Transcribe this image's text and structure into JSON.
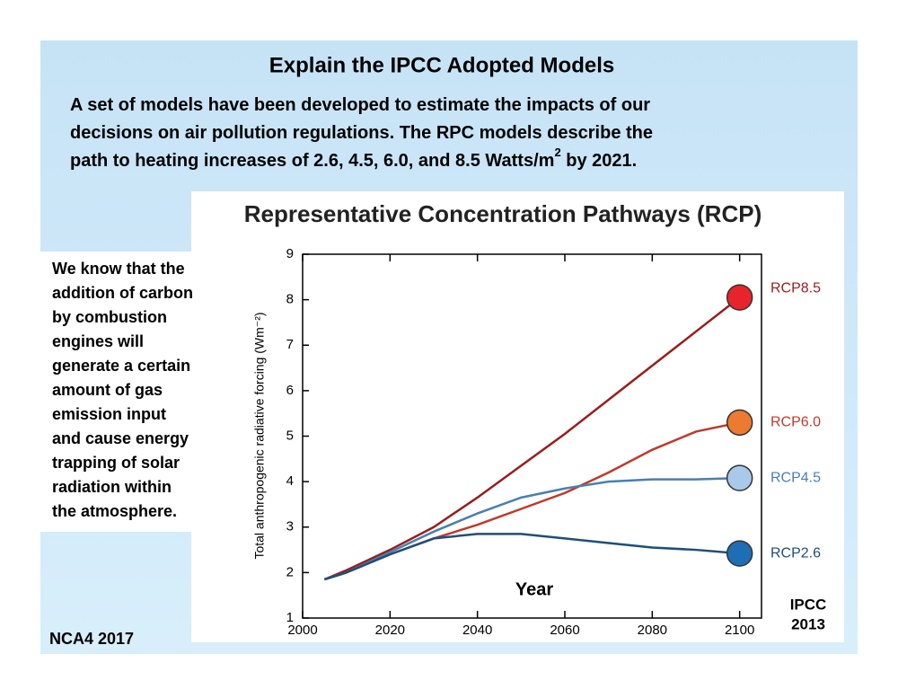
{
  "slide": {
    "title": "Explain the IPCC Adopted Models",
    "body_lines": [
      "A set of models have been developed to estimate the impacts of our",
      "decisions on air pollution regulations.  The RPC models describe the",
      "path to heating increases of 2.6, 4.5, 6.0, and 8.5 Watts/m"
    ],
    "body_superscript": "2",
    "body_tail": " by 2021.",
    "side_lines": [
      "We know that the",
      "addition of carbon",
      "by combustion",
      "engines will",
      "generate a certain",
      "amount of gas",
      "emission input",
      "and cause energy",
      "trapping of solar",
      "radiation within",
      "the atmosphere."
    ],
    "footer": "NCA4 2017"
  },
  "chart_data": {
    "type": "line",
    "title": "Representative Concentration Pathways (RCP)",
    "x_label": "Year",
    "y_label": "Total anthropogenic radiative forcing (Wm⁻²)",
    "credit_lines": [
      "IPCC",
      "2013"
    ],
    "x": [
      2005,
      2010,
      2020,
      2030,
      2040,
      2050,
      2060,
      2070,
      2080,
      2090,
      2100
    ],
    "series": [
      {
        "name": "RCP8.5",
        "color": "#9b1c1c",
        "marker_color": "#e8232b",
        "values": [
          1.85,
          2.05,
          2.5,
          3.0,
          3.65,
          4.35,
          5.05,
          5.8,
          6.55,
          7.3,
          8.05
        ]
      },
      {
        "name": "RCP6.0",
        "color": "#c0392b",
        "marker_color": "#ec7a30",
        "values": [
          1.85,
          2.0,
          2.4,
          2.75,
          3.05,
          3.4,
          3.75,
          4.2,
          4.7,
          5.1,
          5.3
        ]
      },
      {
        "name": "RCP4.5",
        "color": "#4a7fb0",
        "marker_color": "#a9c9ea",
        "values": [
          1.85,
          2.0,
          2.45,
          2.9,
          3.3,
          3.65,
          3.85,
          4.0,
          4.05,
          4.05,
          4.08
        ]
      },
      {
        "name": "RCP2.6",
        "color": "#1f4e79",
        "marker_color": "#1f6db5",
        "values": [
          1.85,
          2.0,
          2.4,
          2.75,
          2.85,
          2.85,
          2.75,
          2.65,
          2.55,
          2.5,
          2.42
        ]
      }
    ],
    "xlim": [
      2000,
      2105
    ],
    "ylim": [
      1,
      9
    ],
    "xticks": [
      2000,
      2020,
      2040,
      2060,
      2080,
      2100
    ],
    "yticks": [
      1,
      2,
      3,
      4,
      5,
      6,
      7,
      8,
      9
    ],
    "grid": false
  }
}
